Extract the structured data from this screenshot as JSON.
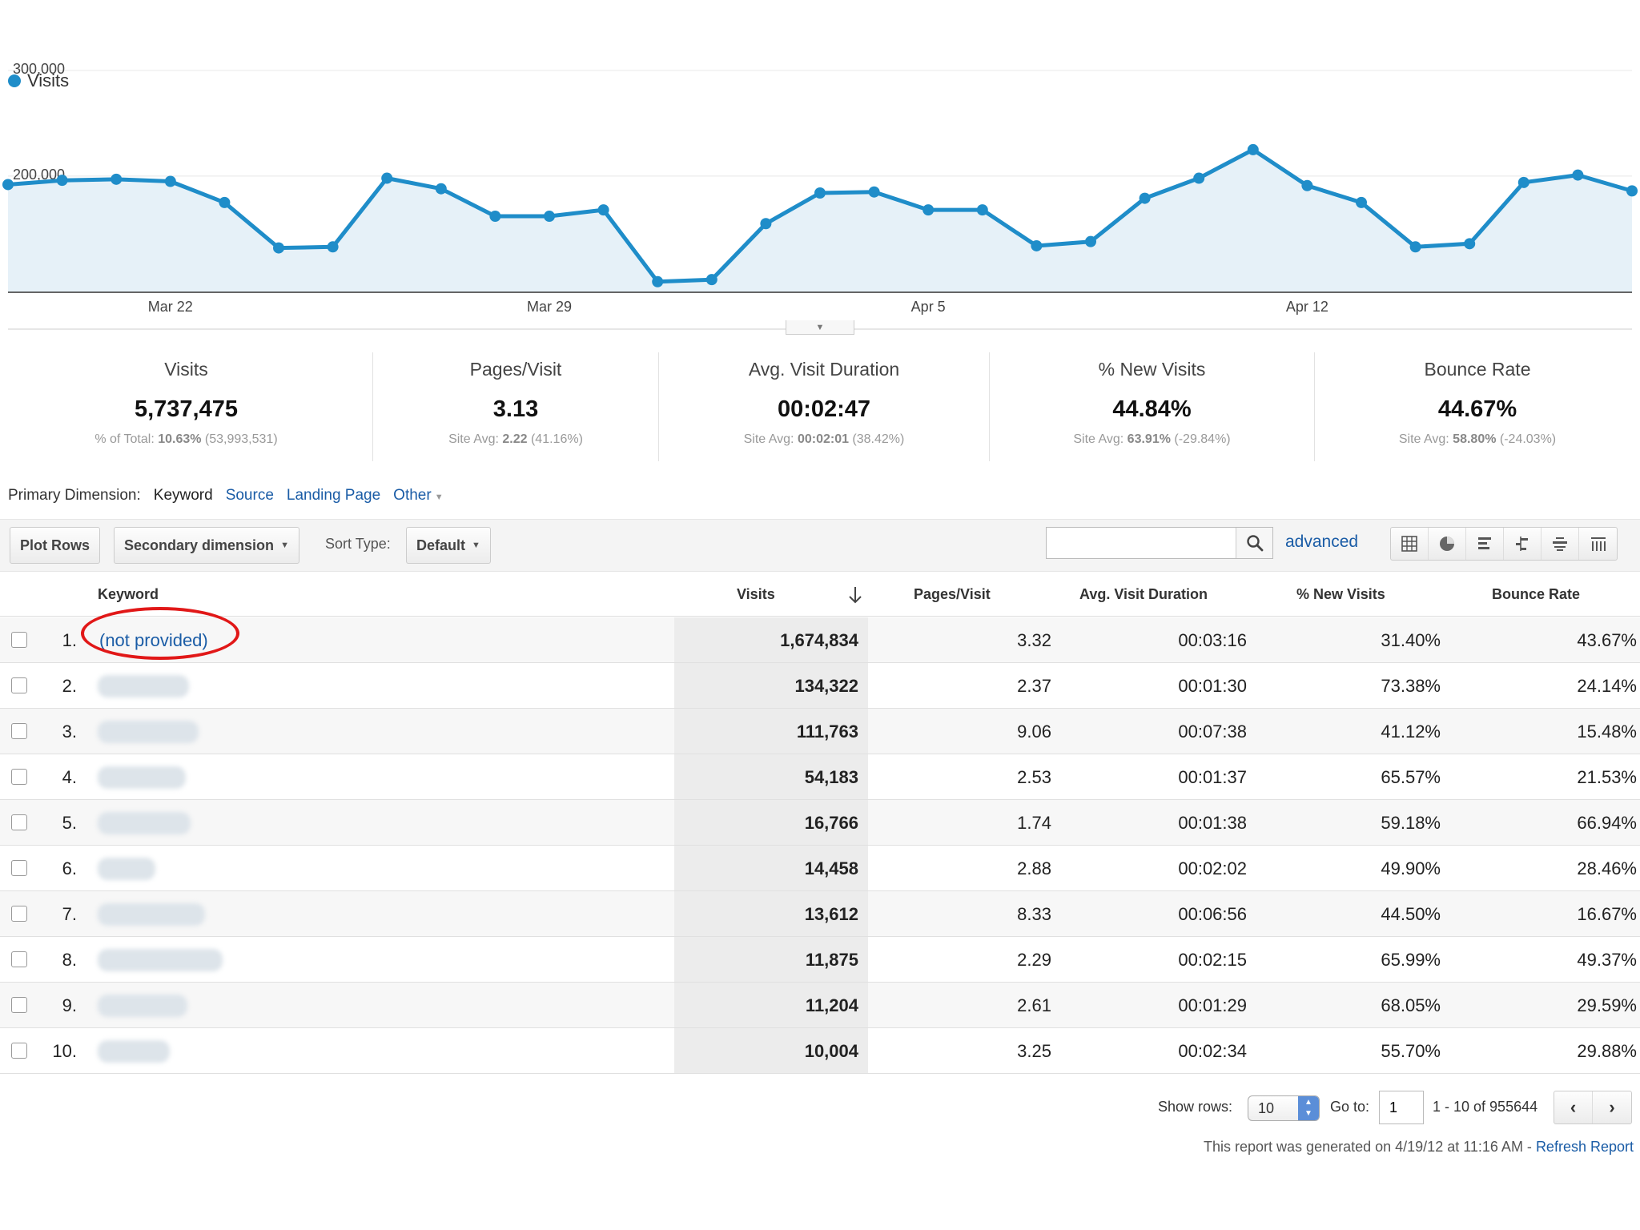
{
  "chart_data": {
    "type": "area",
    "series": [
      {
        "name": "Visits",
        "color": "#1f8dc9",
        "values": [
          192000,
          196000,
          197000,
          195000,
          175000,
          132000,
          133000,
          198000,
          188000,
          162000,
          162000,
          168000,
          100000,
          102000,
          155000,
          184000,
          185000,
          168000,
          168000,
          134000,
          138000,
          179000,
          198000,
          225000,
          191000,
          175000,
          133000,
          136000,
          194000,
          201000,
          186000
        ]
      }
    ],
    "ylim": [
      90000,
      300000
    ],
    "yticks": [
      {
        "value": 300000,
        "label": "300,000"
      },
      {
        "value": 200000,
        "label": "200,000"
      }
    ],
    "xticks": [
      {
        "index": 3,
        "label": "Mar 22"
      },
      {
        "index": 10,
        "label": "Mar 29"
      },
      {
        "index": 17,
        "label": "Apr 5"
      },
      {
        "index": 24,
        "label": "Apr 12"
      }
    ],
    "grid": true,
    "legend": "top-left",
    "fill_color": "#e6f1f8"
  },
  "legend": {
    "label": "Visits"
  },
  "scorecards": [
    {
      "label": "Visits",
      "value": "5,737,475",
      "sub_prefix": "% of Total: ",
      "sub_bold": "10.63%",
      "sub_suffix": " (53,993,531)"
    },
    {
      "label": "Pages/Visit",
      "value": "3.13",
      "sub_prefix": "Site Avg: ",
      "sub_bold": "2.22",
      "sub_suffix": " (41.16%)"
    },
    {
      "label": "Avg. Visit Duration",
      "value": "00:02:47",
      "sub_prefix": "Site Avg: ",
      "sub_bold": "00:02:01",
      "sub_suffix": " (38.42%)"
    },
    {
      "label": "% New Visits",
      "value": "44.84%",
      "sub_prefix": "Site Avg: ",
      "sub_bold": "63.91%",
      "sub_suffix": " (-29.84%)"
    },
    {
      "label": "Bounce Rate",
      "value": "44.67%",
      "sub_prefix": "Site Avg: ",
      "sub_bold": "58.80%",
      "sub_suffix": " (-24.03%)"
    }
  ],
  "primary_dimension": {
    "label": "Primary Dimension:",
    "current": "Keyword",
    "links": [
      "Source",
      "Landing Page",
      "Other"
    ]
  },
  "toolbar": {
    "plot_rows": "Plot Rows",
    "secondary_dimension": "Secondary dimension",
    "sort_type_label": "Sort Type:",
    "sort_type_value": "Default",
    "search_value": "",
    "advanced": "advanced"
  },
  "table": {
    "headers": {
      "keyword": "Keyword",
      "visits": "Visits",
      "pages_visit": "Pages/Visit",
      "duration": "Avg. Visit Duration",
      "new_visits": "% New Visits",
      "bounce": "Bounce Rate"
    },
    "rows": [
      {
        "idx": "1.",
        "keyword": "(not provided)",
        "visits": "1,674,834",
        "ppv": "3.32",
        "dur": "00:03:16",
        "nv": "31.40%",
        "br": "43.67%"
      },
      {
        "idx": "2.",
        "keyword": "",
        "visits": "134,322",
        "ppv": "2.37",
        "dur": "00:01:30",
        "nv": "73.38%",
        "br": "24.14%"
      },
      {
        "idx": "3.",
        "keyword": "",
        "visits": "111,763",
        "ppv": "9.06",
        "dur": "00:07:38",
        "nv": "41.12%",
        "br": "15.48%"
      },
      {
        "idx": "4.",
        "keyword": "",
        "visits": "54,183",
        "ppv": "2.53",
        "dur": "00:01:37",
        "nv": "65.57%",
        "br": "21.53%"
      },
      {
        "idx": "5.",
        "keyword": "",
        "visits": "16,766",
        "ppv": "1.74",
        "dur": "00:01:38",
        "nv": "59.18%",
        "br": "66.94%"
      },
      {
        "idx": "6.",
        "keyword": "",
        "visits": "14,458",
        "ppv": "2.88",
        "dur": "00:02:02",
        "nv": "49.90%",
        "br": "28.46%"
      },
      {
        "idx": "7.",
        "keyword": "",
        "visits": "13,612",
        "ppv": "8.33",
        "dur": "00:06:56",
        "nv": "44.50%",
        "br": "16.67%"
      },
      {
        "idx": "8.",
        "keyword": "",
        "visits": "11,875",
        "ppv": "2.29",
        "dur": "00:02:15",
        "nv": "65.99%",
        "br": "49.37%"
      },
      {
        "idx": "9.",
        "keyword": "",
        "visits": "11,204",
        "ppv": "2.61",
        "dur": "00:01:29",
        "nv": "68.05%",
        "br": "29.59%"
      },
      {
        "idx": "10.",
        "keyword": "",
        "visits": "10,004",
        "ppv": "3.25",
        "dur": "00:02:34",
        "nv": "55.70%",
        "br": "29.88%"
      }
    ]
  },
  "footer": {
    "show_rows_label": "Show rows:",
    "show_rows_value": "10",
    "goto_label": "Go to:",
    "goto_value": "1",
    "range": "1 - 10 of 955644",
    "generated_text": "This report was generated on 4/19/12 at 11:16 AM - ",
    "refresh": "Refresh Report"
  },
  "colors": {
    "accent": "#1f8dc9",
    "link": "#1a5ca6",
    "highlight": "#e11818"
  }
}
